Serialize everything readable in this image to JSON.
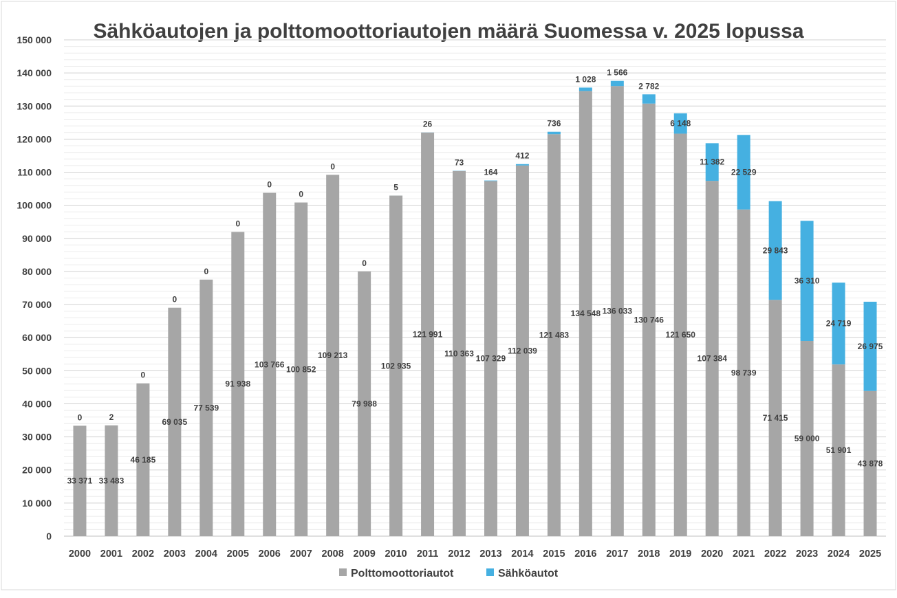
{
  "chart_data": {
    "type": "bar",
    "stacked": true,
    "title": "Sähköautojen ja polttomoottoriautojen määrä Suomessa v. 2025 lopussa",
    "categories": [
      "2000",
      "2001",
      "2002",
      "2003",
      "2004",
      "2005",
      "2006",
      "2007",
      "2008",
      "2009",
      "2010",
      "2011",
      "2012",
      "2013",
      "2014",
      "2015",
      "2016",
      "2017",
      "2018",
      "2019",
      "2020",
      "2021",
      "2022",
      "2023",
      "2024",
      "2025"
    ],
    "series": [
      {
        "name": "Polttomoottoriautot",
        "color": "#a6a6a6",
        "values": [
          33371,
          33483,
          46185,
          69035,
          77539,
          91938,
          103766,
          100852,
          109213,
          79988,
          102935,
          121991,
          110363,
          107329,
          112039,
          121483,
          134548,
          136033,
          130746,
          121650,
          107384,
          98739,
          71415,
          59000,
          51901,
          43878
        ],
        "labels": [
          "33 371",
          "33 483",
          "46 185",
          "69 035",
          "77 539",
          "91 938",
          "103 766",
          "100 852",
          "109 213",
          "79 988",
          "102 935",
          "121 991",
          "110 363",
          "107 329",
          "112 039",
          "121 483",
          "134 548",
          "136 033",
          "130 746",
          "121 650",
          "107 384",
          "98 739",
          "71 415",
          "59 000",
          "51 901",
          "43 878"
        ]
      },
      {
        "name": "Sähköautot",
        "color": "#45b0e1",
        "values": [
          0,
          2,
          0,
          0,
          0,
          0,
          0,
          0,
          0,
          0,
          5,
          26,
          73,
          164,
          412,
          736,
          1028,
          1566,
          2782,
          6148,
          11382,
          22529,
          29843,
          36310,
          24719,
          26975
        ],
        "labels": [
          "0",
          "2",
          "0",
          "0",
          "0",
          "0",
          "0",
          "0",
          "0",
          "0",
          "5",
          "26",
          "73",
          "164",
          "412",
          "736",
          "1 028",
          "1 566",
          "2 782",
          "6 148",
          "11 382",
          "22 529",
          "29 843",
          "36 310",
          "24 719",
          "26 975"
        ]
      }
    ],
    "ylim": [
      0,
      150000
    ],
    "yticks": [
      "0",
      "10 000",
      "20 000",
      "30 000",
      "40 000",
      "50 000",
      "60 000",
      "70 000",
      "80 000",
      "90 000",
      "100 000",
      "110 000",
      "120 000",
      "130 000",
      "140 000",
      "150 000"
    ],
    "grid": true,
    "legend_position": "bottom"
  }
}
